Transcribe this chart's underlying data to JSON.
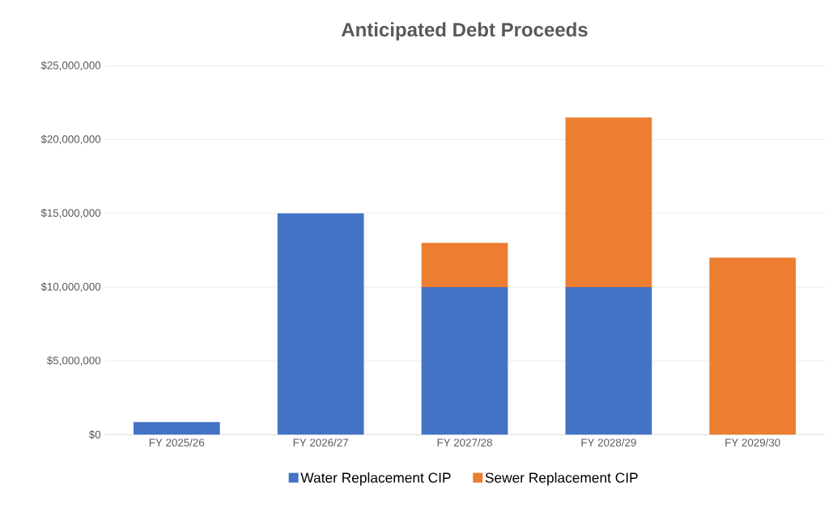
{
  "chart_data": {
    "type": "bar",
    "title": "Anticipated Debt Proceeds",
    "categories": [
      "FY 2025/26",
      "FY 2026/27",
      "FY 2027/28",
      "FY 2028/29",
      "FY 2029/30"
    ],
    "stacked": true,
    "series": [
      {
        "name": "Water Replacement CIP",
        "color": "#4472c4",
        "values": [
          850000,
          15000000,
          10000000,
          10000000,
          null
        ]
      },
      {
        "name": "Sewer Replacement CIP",
        "color": "#ed7d31",
        "values": [
          null,
          null,
          3000000,
          11500000,
          12000000
        ]
      }
    ],
    "ylim": [
      0,
      25000000
    ],
    "yticks": [
      {
        "value": 0,
        "label": "$0"
      },
      {
        "value": 5000000,
        "label": "$5,000,000"
      },
      {
        "value": 10000000,
        "label": "$10,000,000"
      },
      {
        "value": 15000000,
        "label": "$15,000,000"
      },
      {
        "value": 20000000,
        "label": "$20,000,000"
      },
      {
        "value": 25000000,
        "label": "$25,000,000"
      }
    ],
    "grid": "y",
    "legend": "bottom"
  }
}
